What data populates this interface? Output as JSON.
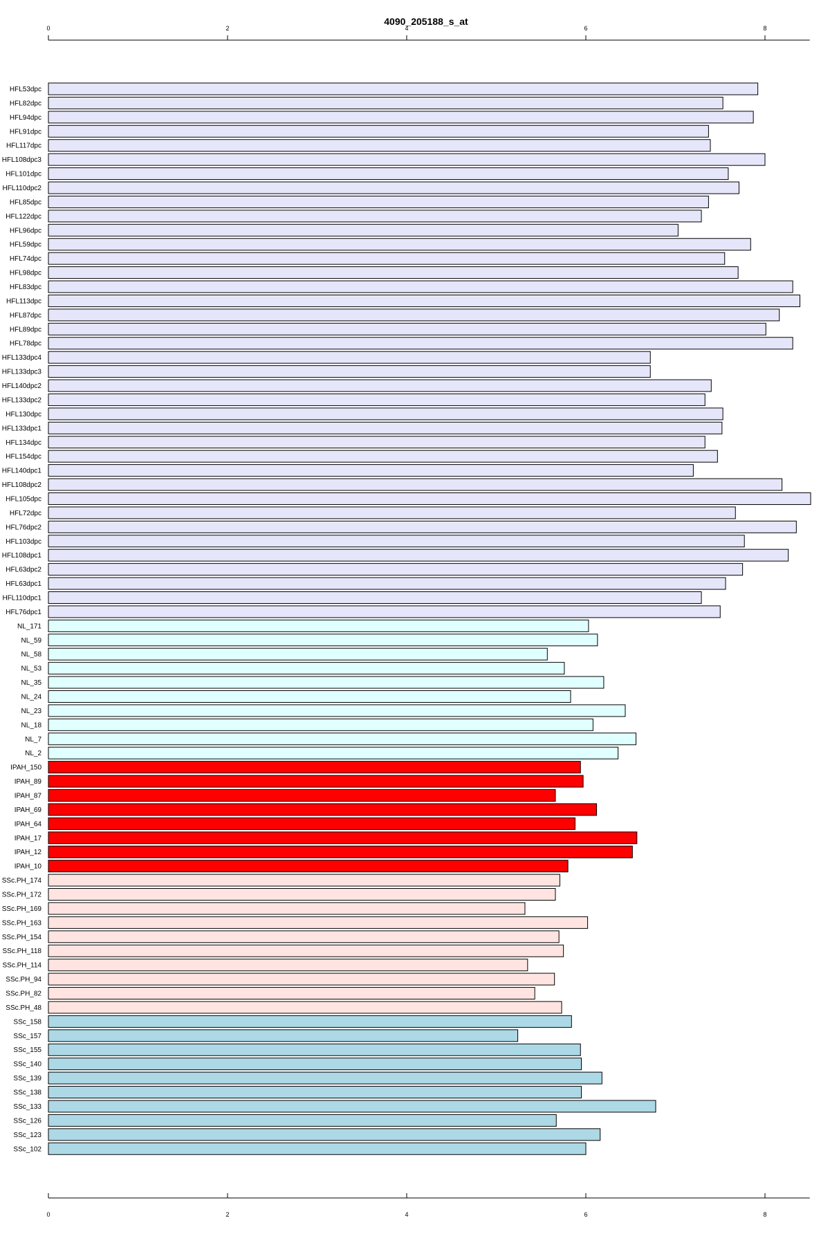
{
  "chart_data": {
    "type": "bar",
    "orientation": "horizontal",
    "title": "4090_205188_s_at",
    "xlabel": "",
    "ylabel": "",
    "xlim": [
      0,
      8.5
    ],
    "ticks": [
      "0",
      "2",
      "4",
      "6",
      "8"
    ],
    "tick_values": [
      0,
      2,
      4,
      6,
      8
    ],
    "axes": [
      "top",
      "bottom"
    ],
    "grid": false,
    "categories": [
      "HFL53dpc",
      "HFL82dpc",
      "HFL94dpc",
      "HFL91dpc",
      "HFL117dpc",
      "HFL108dpc3",
      "HFL101dpc",
      "HFL110dpc2",
      "HFL85dpc",
      "HFL122dpc",
      "HFL96dpc",
      "HFL59dpc",
      "HFL74dpc",
      "HFL98dpc",
      "HFL83dpc",
      "HFL113dpc",
      "HFL87dpc",
      "HFL89dpc",
      "HFL78dpc",
      "HFL133dpc4",
      "HFL133dpc3",
      "HFL140dpc2",
      "HFL133dpc2",
      "HFL130dpc",
      "HFL133dpc1",
      "HFL134dpc",
      "HFL154dpc",
      "HFL140dpc1",
      "HFL108dpc2",
      "HFL105dpc",
      "HFL72dpc",
      "HFL76dpc2",
      "HFL103dpc",
      "HFL108dpc1",
      "HFL63dpc2",
      "HFL63dpc1",
      "HFL110dpc1",
      "HFL76dpc1",
      "NL_171",
      "NL_59",
      "NL_58",
      "NL_53",
      "NL_35",
      "NL_24",
      "NL_23",
      "NL_18",
      "NL_7",
      "NL_2",
      "IPAH_150",
      "IPAH_89",
      "IPAH_87",
      "IPAH_69",
      "IPAH_64",
      "IPAH_17",
      "IPAH_12",
      "IPAH_10",
      "SSc.PH_174",
      "SSc.PH_172",
      "SSc.PH_169",
      "SSc.PH_163",
      "SSc.PH_154",
      "SSc.PH_118",
      "SSc.PH_114",
      "SSc.PH_94",
      "SSc.PH_82",
      "SSc.PH_48",
      "SSc_158",
      "SSc_157",
      "SSc_155",
      "SSc_140",
      "SSc_139",
      "SSc_138",
      "SSc_133",
      "SSc_126",
      "SSc_123",
      "SSc_102"
    ],
    "values": [
      7.92,
      7.53,
      7.87,
      7.37,
      7.39,
      8.0,
      7.59,
      7.71,
      7.37,
      7.29,
      7.03,
      7.84,
      7.55,
      7.7,
      8.31,
      8.39,
      8.16,
      8.01,
      8.31,
      6.72,
      6.72,
      7.4,
      7.33,
      7.53,
      7.52,
      7.33,
      7.47,
      7.2,
      8.19,
      8.51,
      7.67,
      8.35,
      7.77,
      8.26,
      7.75,
      7.56,
      7.29,
      7.5,
      6.03,
      6.13,
      5.57,
      5.76,
      6.2,
      5.83,
      6.44,
      6.08,
      6.56,
      6.36,
      5.94,
      5.97,
      5.66,
      6.12,
      5.88,
      6.57,
      6.52,
      5.8,
      5.71,
      5.66,
      5.32,
      6.02,
      5.7,
      5.75,
      5.35,
      5.65,
      5.43,
      5.73,
      5.84,
      5.24,
      5.94,
      5.95,
      6.18,
      5.95,
      6.78,
      5.67,
      6.16,
      6.0
    ],
    "bar_colors": [
      "#e6e6fa",
      "#e6e6fa",
      "#e6e6fa",
      "#e6e6fa",
      "#e6e6fa",
      "#e6e6fa",
      "#e6e6fa",
      "#e6e6fa",
      "#e6e6fa",
      "#e6e6fa",
      "#e6e6fa",
      "#e6e6fa",
      "#e6e6fa",
      "#e6e6fa",
      "#e6e6fa",
      "#e6e6fa",
      "#e6e6fa",
      "#e6e6fa",
      "#e6e6fa",
      "#e6e6fa",
      "#e6e6fa",
      "#e6e6fa",
      "#e6e6fa",
      "#e6e6fa",
      "#e6e6fa",
      "#e6e6fa",
      "#e6e6fa",
      "#e6e6fa",
      "#e6e6fa",
      "#e6e6fa",
      "#e6e6fa",
      "#e6e6fa",
      "#e6e6fa",
      "#e6e6fa",
      "#e6e6fa",
      "#e6e6fa",
      "#e6e6fa",
      "#e6e6fa",
      "#e0ffff",
      "#e0ffff",
      "#e0ffff",
      "#e0ffff",
      "#e0ffff",
      "#e0ffff",
      "#e0ffff",
      "#e0ffff",
      "#e0ffff",
      "#e0ffff",
      "#ff0000",
      "#ff0000",
      "#ff0000",
      "#ff0000",
      "#ff0000",
      "#ff0000",
      "#ff0000",
      "#ff0000",
      "#ffe4e1",
      "#ffe4e1",
      "#ffe4e1",
      "#ffe4e1",
      "#ffe4e1",
      "#ffe4e1",
      "#ffe4e1",
      "#ffe4e1",
      "#ffe4e1",
      "#ffe4e1",
      "#add8e6",
      "#add8e6",
      "#add8e6",
      "#add8e6",
      "#add8e6",
      "#add8e6",
      "#add8e6",
      "#add8e6",
      "#add8e6",
      "#add8e6"
    ]
  }
}
